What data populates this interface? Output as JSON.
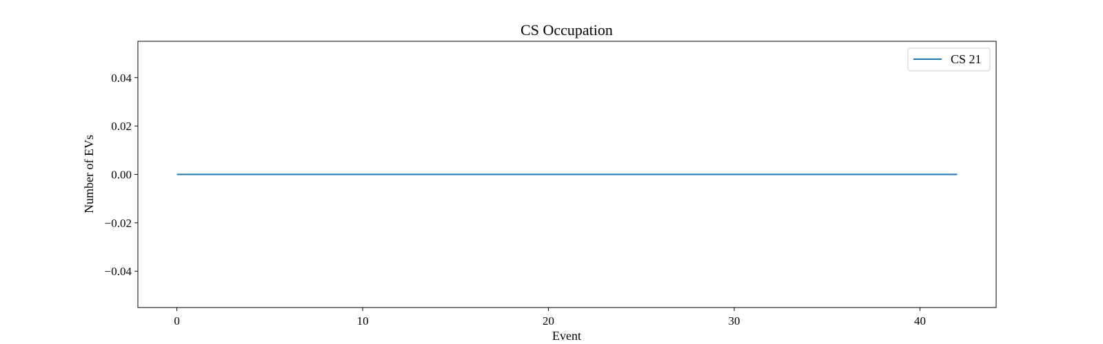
{
  "chart_data": {
    "type": "line",
    "title": "CS Occupation",
    "xlabel": "Event",
    "ylabel": "Number of EVs",
    "xlim": [
      -2.1,
      44.1
    ],
    "ylim": [
      -0.055,
      0.055
    ],
    "xticks": [
      0,
      10,
      20,
      30,
      40
    ],
    "xtick_labels": [
      "0",
      "10",
      "20",
      "30",
      "40"
    ],
    "yticks": [
      0.04,
      0.02,
      0.0,
      -0.02,
      -0.04
    ],
    "ytick_labels": [
      "0.04",
      "0.02",
      "0.00",
      "−0.02",
      "−0.04"
    ],
    "grid": false,
    "legend_position": "top-right",
    "series": [
      {
        "name": "CS 21",
        "color": "#1f77b4",
        "x": [
          0,
          42
        ],
        "y": [
          0,
          0
        ]
      }
    ]
  }
}
